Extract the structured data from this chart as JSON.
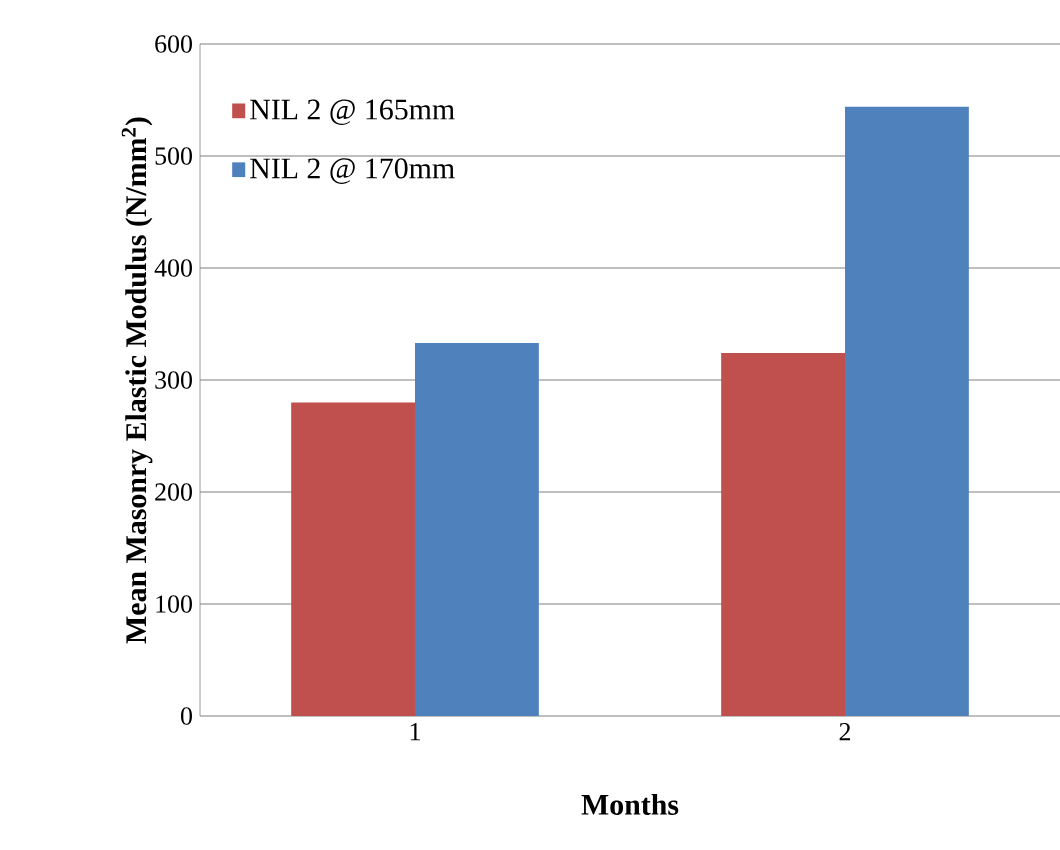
{
  "chart_data": {
    "type": "bar",
    "xlabel": "Months",
    "ylabel": "Mean Masonry Elastic Modulus (N/mm$^{2}$)",
    "categories": [
      "1",
      "2"
    ],
    "series": [
      {
        "name": "NIL 2 @ 165mm",
        "color": "#c0504d",
        "values": [
          280,
          324
        ]
      },
      {
        "name": "NIL 2 @ 170mm",
        "color": "#4f81bd",
        "values": [
          333,
          544
        ]
      }
    ],
    "ylim": [
      0,
      600
    ],
    "yticks": [
      0,
      100,
      200,
      300,
      400,
      500,
      600
    ],
    "grid": "y",
    "legend": "top left"
  }
}
